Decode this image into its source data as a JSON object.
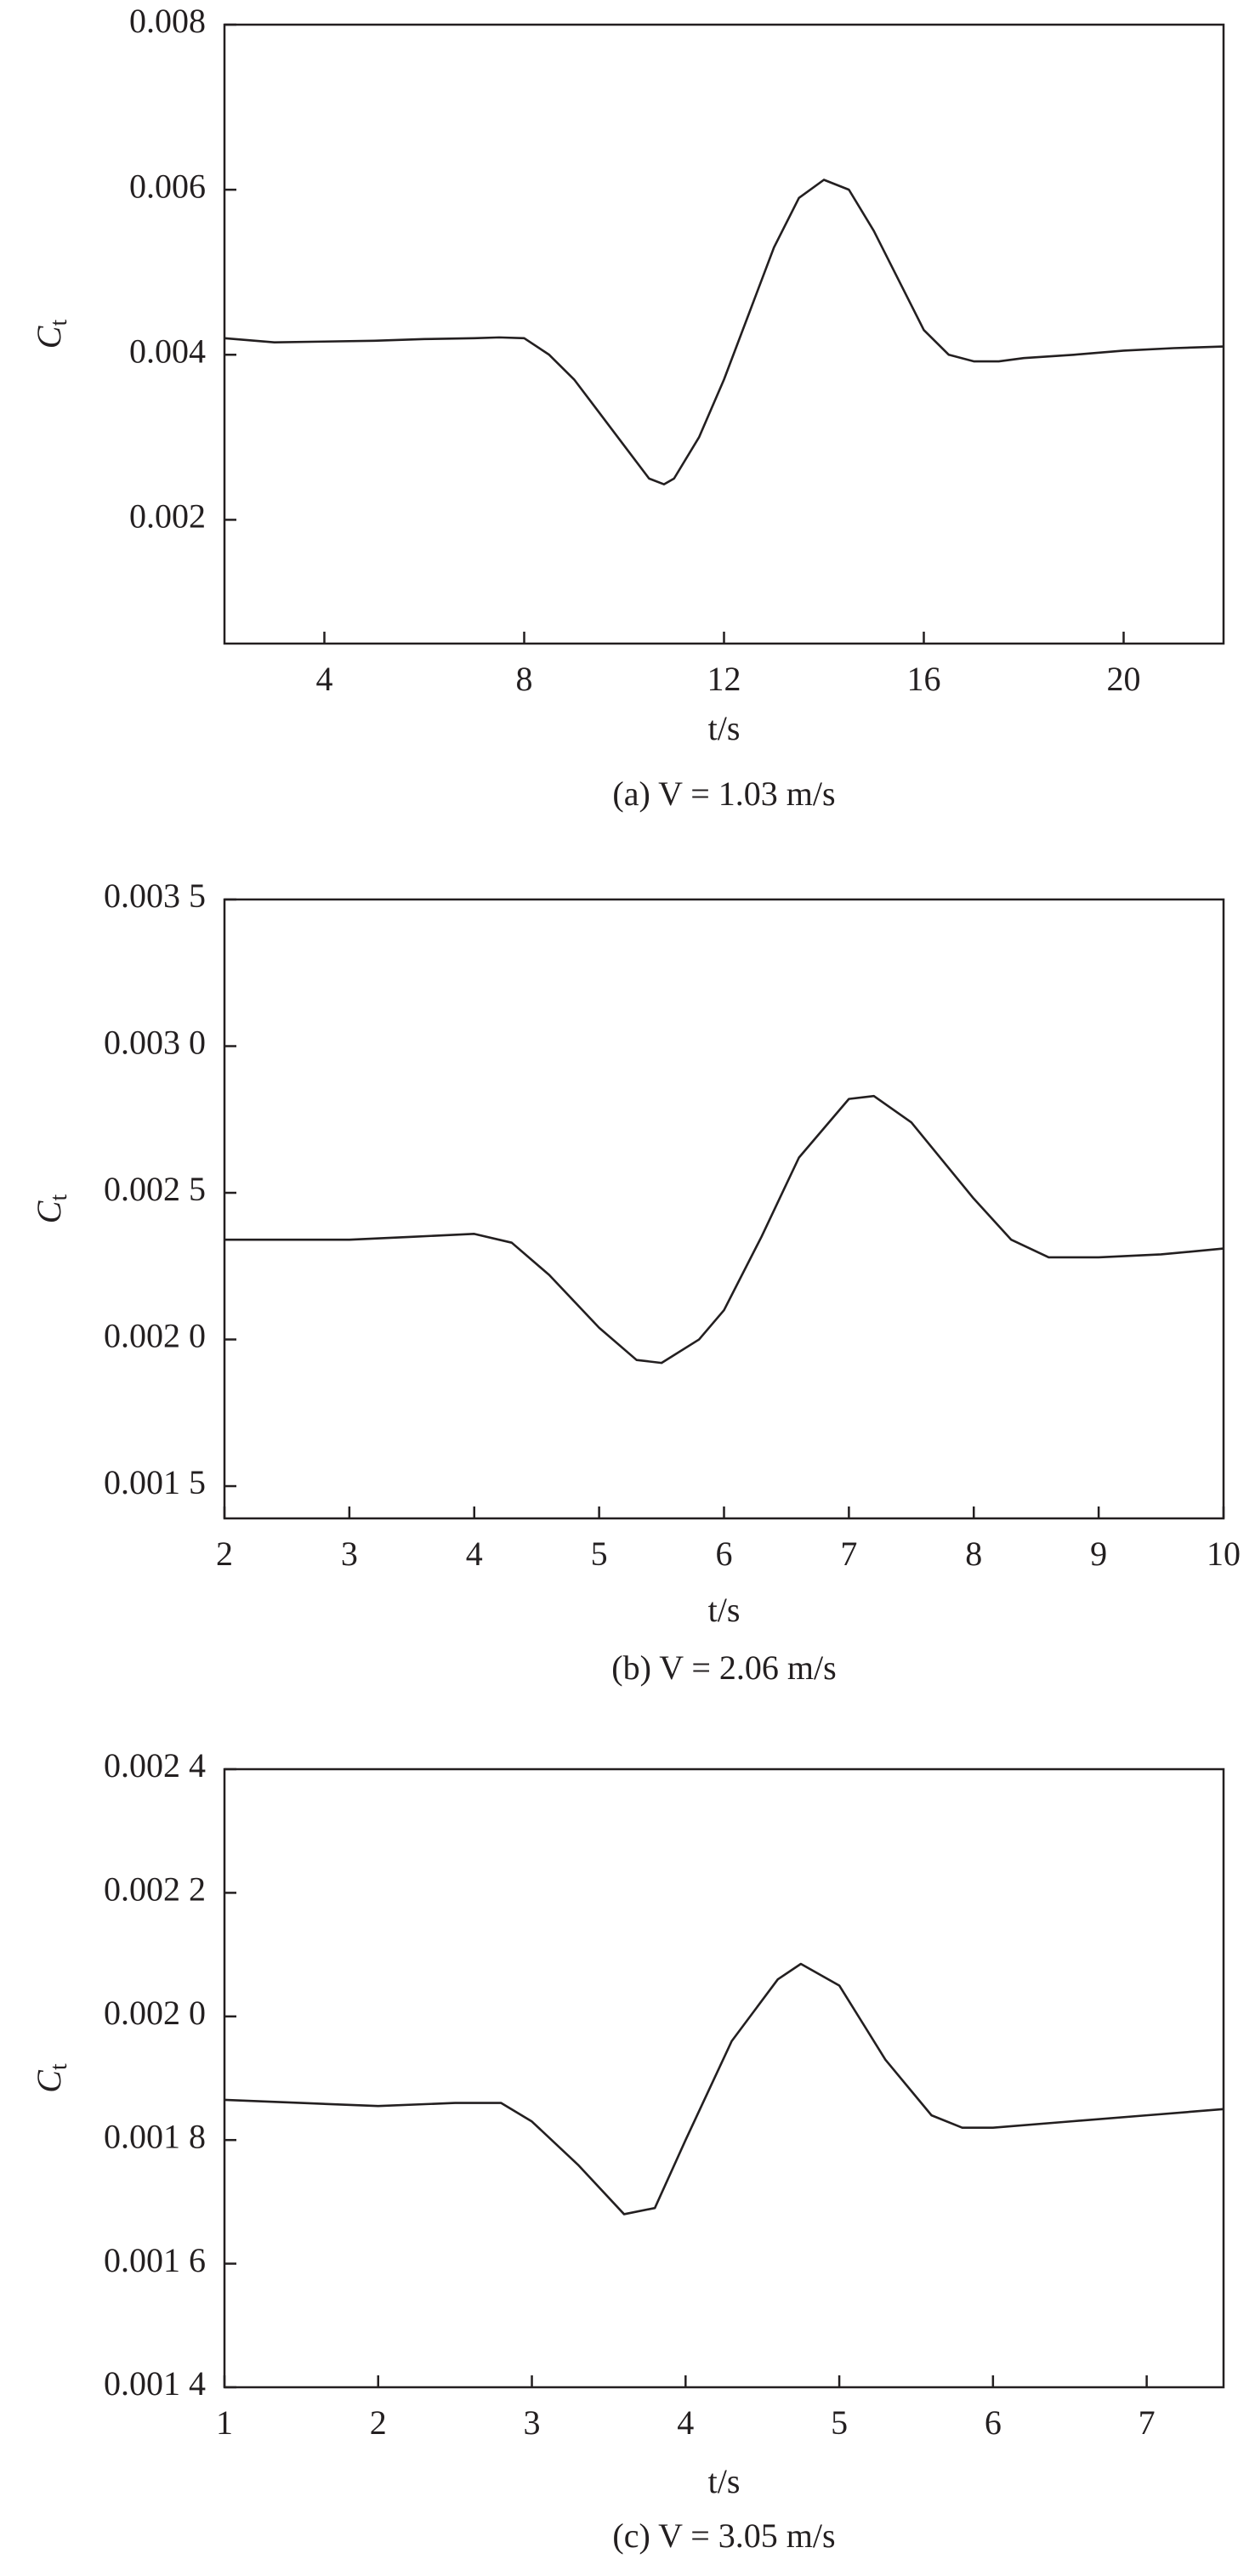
{
  "chart_data": [
    {
      "type": "line",
      "ylabel": "C",
      "ylabel_subscript": "t",
      "xlabel": "t/s",
      "caption": "(a) V = 1.03 m/s",
      "x": [
        2,
        3,
        4,
        5,
        6,
        7,
        7.5,
        8,
        8.5,
        9,
        9.5,
        10,
        10.5,
        10.8,
        11,
        11.5,
        12,
        12.5,
        13,
        13.5,
        14,
        14.5,
        15,
        15.5,
        16,
        16.5,
        17,
        17.5,
        18,
        19,
        20,
        21,
        22
      ],
      "series": [
        {
          "color": "#231f20",
          "values": [
            0.0042,
            0.00415,
            0.00416,
            0.00417,
            0.00419,
            0.0042,
            0.00421,
            0.0042,
            0.004,
            0.0037,
            0.0033,
            0.0029,
            0.0025,
            0.00243,
            0.0025,
            0.003,
            0.0037,
            0.0045,
            0.0053,
            0.0059,
            0.00612,
            0.006,
            0.0055,
            0.0049,
            0.0043,
            0.004,
            0.00392,
            0.00392,
            0.00396,
            0.004,
            0.00405,
            0.00408,
            0.0041
          ]
        }
      ],
      "xlim": [
        2,
        22
      ],
      "xticks": [
        4,
        8,
        12,
        16,
        20
      ],
      "ylim": [
        0.0005,
        0.008
      ],
      "yticks": [
        0.002,
        0.004,
        0.006,
        0.008
      ]
    },
    {
      "type": "line",
      "ylabel": "C",
      "ylabel_subscript": "t",
      "xlabel": "t/s",
      "caption": "(b) V = 2.06 m/s",
      "x": [
        2,
        2.5,
        3,
        3.5,
        4,
        4.3,
        4.6,
        5,
        5.3,
        5.5,
        5.8,
        6,
        6.3,
        6.6,
        7,
        7.2,
        7.5,
        8,
        8.3,
        8.6,
        9,
        9.5,
        10
      ],
      "series": [
        {
          "color": "#231f20",
          "values": [
            0.00234,
            0.00234,
            0.00234,
            0.00235,
            0.00236,
            0.00233,
            0.00222,
            0.00204,
            0.00193,
            0.00192,
            0.002,
            0.0021,
            0.00235,
            0.00262,
            0.00282,
            0.00283,
            0.00274,
            0.00248,
            0.00234,
            0.00228,
            0.00228,
            0.00229,
            0.00231
          ]
        }
      ],
      "xlim": [
        2,
        10
      ],
      "xticks": [
        2,
        3,
        4,
        5,
        6,
        7,
        8,
        9,
        10
      ],
      "ylim": [
        0.00139,
        0.0035
      ],
      "yticks": [
        {
          "value": 0.0015,
          "label": "0.001 5"
        },
        {
          "value": 0.002,
          "label": "0.002 0"
        },
        {
          "value": 0.0025,
          "label": "0.002 5"
        },
        {
          "value": 0.003,
          "label": "0.003 0"
        },
        {
          "value": 0.0035,
          "label": "0.003 5"
        }
      ]
    },
    {
      "type": "line",
      "ylabel": "C",
      "ylabel_subscript": "t",
      "xlabel": "t/s",
      "caption": "(c) V = 3.05 m/s",
      "x": [
        1,
        1.5,
        2,
        2.5,
        2.8,
        3,
        3.3,
        3.6,
        3.8,
        4,
        4.3,
        4.6,
        4.75,
        5,
        5.3,
        5.6,
        5.8,
        6,
        6.5,
        7,
        7.5
      ],
      "series": [
        {
          "color": "#231f20",
          "values": [
            0.001865,
            0.00186,
            0.001855,
            0.00186,
            0.00186,
            0.00183,
            0.00176,
            0.00168,
            0.00169,
            0.0018,
            0.00196,
            0.00206,
            0.002085,
            0.00205,
            0.00193,
            0.00184,
            0.00182,
            0.00182,
            0.00183,
            0.00184,
            0.00185
          ]
        }
      ],
      "xlim": [
        1,
        7.5
      ],
      "xticks": [
        1,
        2,
        3,
        4,
        5,
        6,
        7
      ],
      "ylim": [
        0.0014,
        0.0024
      ],
      "yticks": [
        {
          "value": 0.0014,
          "label": "0.001 4"
        },
        {
          "value": 0.0016,
          "label": "0.001 6"
        },
        {
          "value": 0.0018,
          "label": "0.001 8"
        },
        {
          "value": 0.002,
          "label": "0.002 0"
        },
        {
          "value": 0.0022,
          "label": "0.002 2"
        },
        {
          "value": 0.0024,
          "label": "0.002 4"
        }
      ]
    }
  ]
}
